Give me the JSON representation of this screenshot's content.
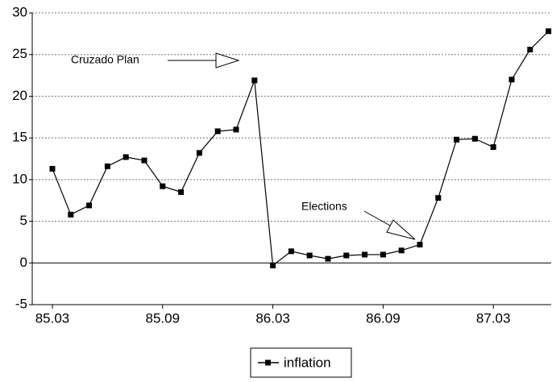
{
  "chart_data": {
    "type": "line",
    "categories": [
      "85.03",
      null,
      null,
      null,
      null,
      null,
      "85.09",
      null,
      null,
      null,
      null,
      null,
      "86.03",
      null,
      null,
      null,
      null,
      null,
      "86.09",
      null,
      null,
      null,
      null,
      null,
      "87.03",
      null,
      null,
      null
    ],
    "series": [
      {
        "name": "inflation",
        "color": "#000000",
        "values": [
          11.3,
          5.8,
          6.9,
          11.6,
          12.7,
          12.3,
          9.2,
          8.5,
          13.2,
          15.8,
          16.0,
          21.9,
          -0.3,
          1.4,
          0.9,
          0.5,
          0.9,
          1.0,
          1.0,
          1.5,
          2.2,
          7.8,
          14.8,
          14.9,
          13.9,
          22.0,
          25.6,
          27.8
        ]
      }
    ],
    "ylim": [
      -5,
      30
    ],
    "yticks": [
      -5,
      0,
      5,
      10,
      15,
      20,
      25,
      30
    ],
    "grid": true,
    "annotations": [
      "Cruzado Plan",
      "Elections"
    ],
    "legend": "bottom"
  }
}
